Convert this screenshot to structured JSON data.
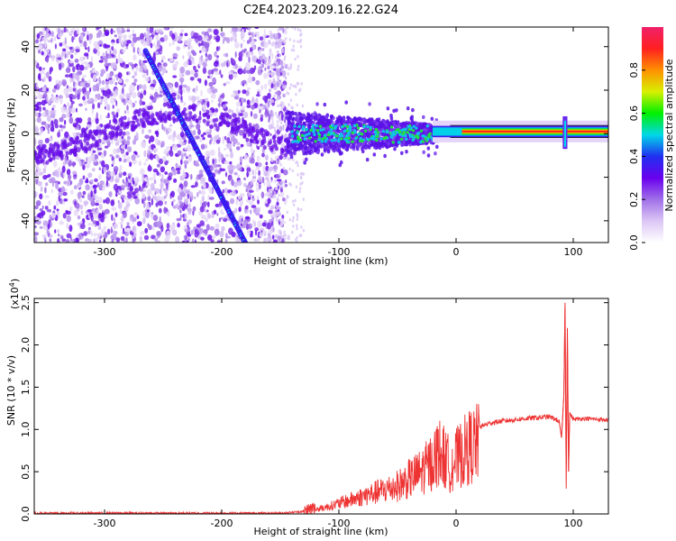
{
  "page": {
    "title": "C2E4.2023.209.16.22.G24"
  },
  "chart_data": [
    {
      "type": "heatmap",
      "xlabel": "Height of straight line (km)",
      "ylabel": "Frequency (Hz)",
      "xlim": [
        -360,
        130
      ],
      "ylim": [
        -50,
        49
      ],
      "xticks": [
        -300,
        -200,
        -100,
        0,
        100
      ],
      "yticks": [
        -40,
        -20,
        0,
        20,
        40
      ],
      "colorbar": {
        "label": "Normalized spectral amplitude",
        "range": [
          0.0,
          1.0
        ],
        "ticks": [
          "0.0",
          "0.2",
          "0.4",
          "0.6",
          "0.8"
        ],
        "tick_values": [
          0.0,
          0.2,
          0.4,
          0.6,
          0.8
        ],
        "colormap": [
          "#ffffff",
          "#dcc6f5",
          "#a070e8",
          "#6a00ee",
          "#2030f0",
          "#00d8e8",
          "#00f000",
          "#d8f000",
          "#ff9000",
          "#ff2020",
          "#f0206a"
        ]
      },
      "features": {
        "diagonal_trace": {
          "x": [
            -265,
            -180
          ],
          "y": [
            38,
            -50
          ]
        },
        "carrier_line": {
          "x": [
            -140,
            130
          ],
          "y": [
            1,
            1
          ]
        },
        "noise_region_x": [
          -360,
          -145
        ],
        "spike_x": 93
      }
    },
    {
      "type": "line",
      "xlabel": "Height of straight line (km)",
      "ylabel": "SNR (10 * v/v)",
      "multiplier_label": "(x10",
      "multiplier_exponent": "4",
      "xlim": [
        -360,
        130
      ],
      "ylim": [
        0,
        2.55
      ],
      "xticks": [
        -300,
        -200,
        -100,
        0,
        100
      ],
      "yticks": [
        "0.0",
        "0.5",
        "1.0",
        "1.5",
        "2.0",
        "2.5"
      ],
      "ytick_values": [
        0.0,
        0.5,
        1.0,
        1.5,
        2.0,
        2.5
      ],
      "color": "#ee3333",
      "series": [
        {
          "x": [
            -360,
            -300,
            -250,
            -200,
            -150,
            -130,
            -110,
            -90,
            -70,
            -50,
            -40,
            -30,
            -20,
            -15,
            -10,
            -5,
            0,
            10,
            20,
            30,
            40,
            60,
            80,
            88,
            90,
            92,
            93,
            94,
            95,
            96,
            97,
            100,
            110,
            120,
            130
          ],
          "y": [
            0.01,
            0.01,
            0.01,
            0.01,
            0.01,
            0.03,
            0.1,
            0.2,
            0.3,
            0.4,
            0.5,
            0.6,
            0.75,
            0.9,
            0.8,
            0.7,
            0.78,
            0.95,
            1.03,
            1.08,
            1.1,
            1.13,
            1.15,
            1.1,
            0.9,
            1.4,
            2.5,
            0.3,
            2.2,
            0.5,
            1.2,
            1.12,
            1.13,
            1.12,
            1.11
          ]
        }
      ]
    }
  ]
}
